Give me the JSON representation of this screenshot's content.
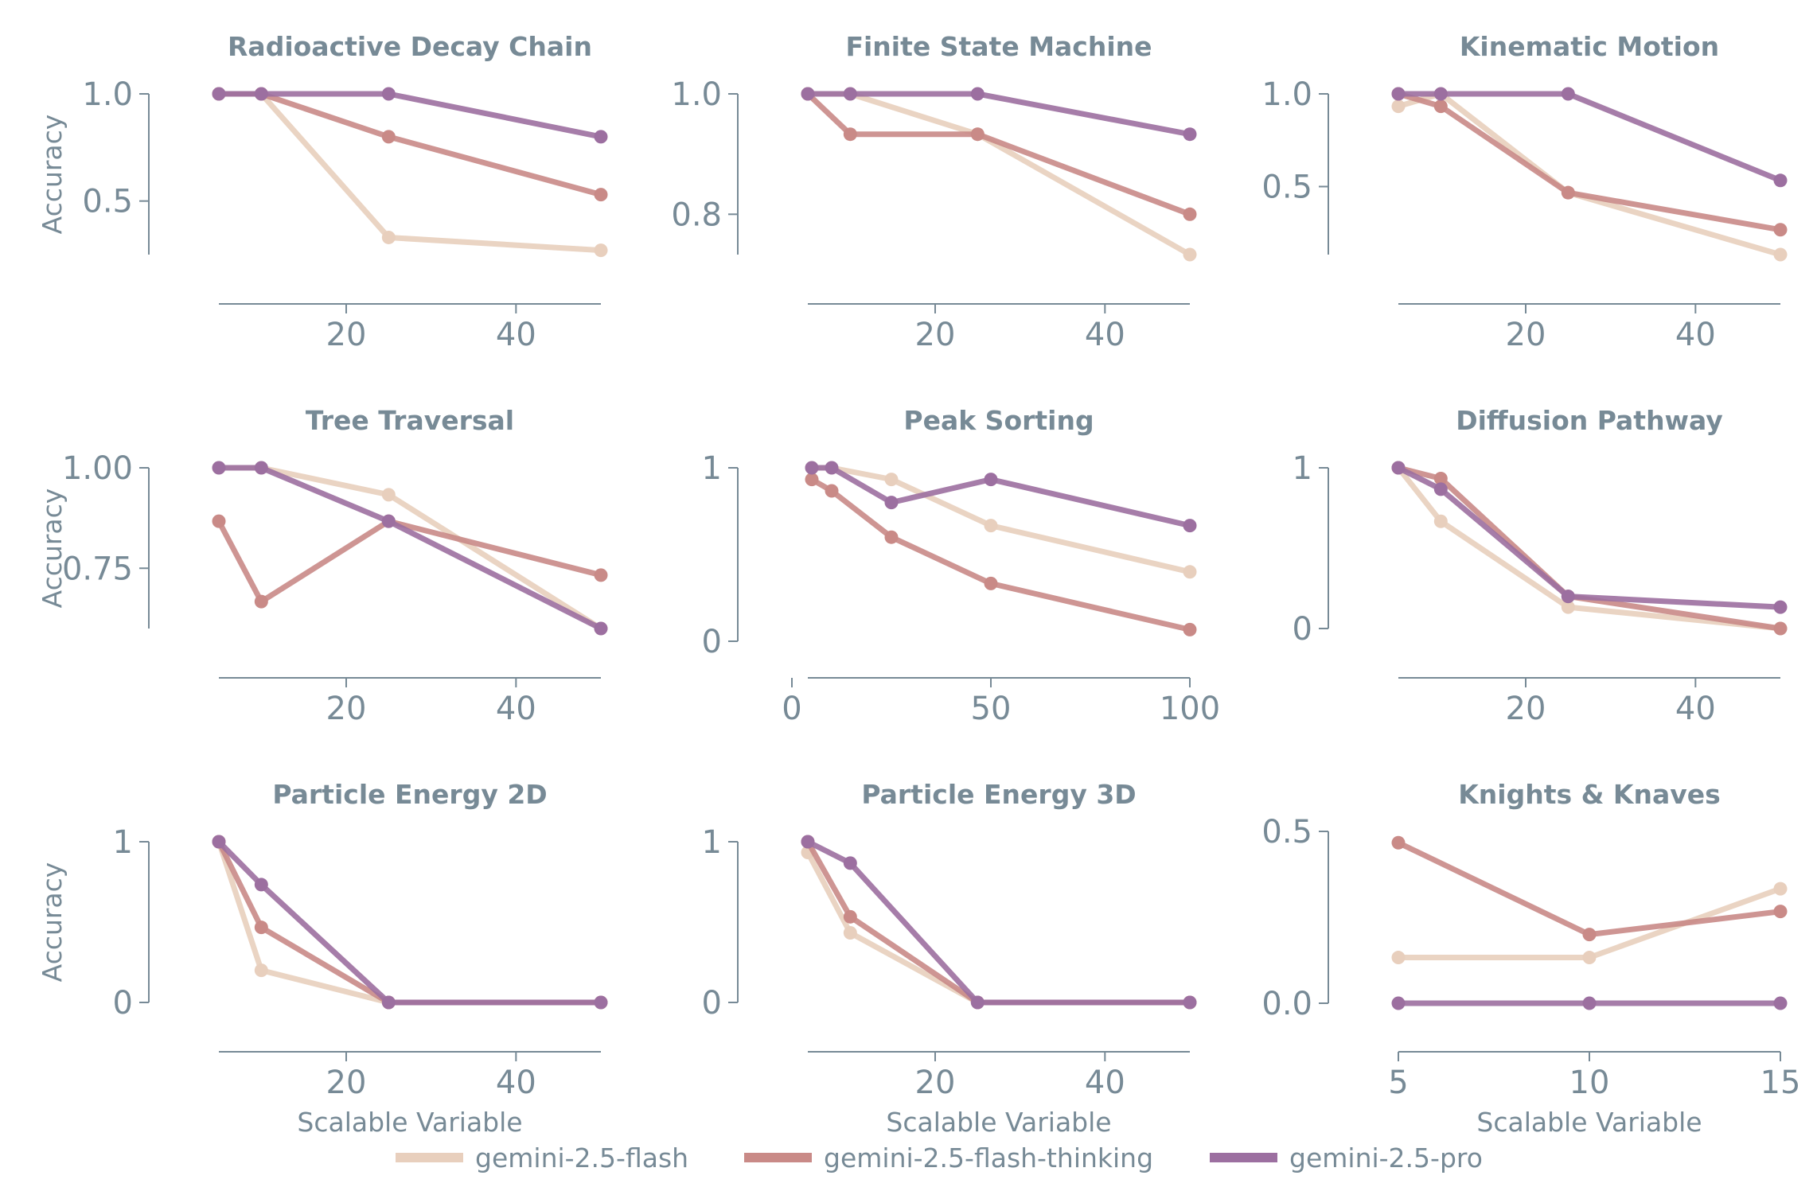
{
  "legend": {
    "placement": "bottom-center",
    "items": [
      {
        "name": "gemini-2.5-flash",
        "color": "#e8cfbd"
      },
      {
        "name": "gemini-2.5-flash-thinking",
        "color": "#c98a87"
      },
      {
        "name": "gemini-2.5-pro",
        "color": "#9c6fa0"
      }
    ]
  },
  "chart_data": [
    {
      "type": "line",
      "title": "Radioactive Decay Chain",
      "xlabel": "",
      "ylabel": "Accuracy",
      "x": [
        5,
        10,
        25,
        50
      ],
      "xticks": [
        20,
        40
      ],
      "yticks": [
        1.0,
        0.5
      ],
      "ytick_labels": [
        "1.0",
        "0.5"
      ],
      "ylim": [
        0.25,
        1.0
      ],
      "grid": false,
      "series": [
        {
          "name": "gemini-2.5-flash",
          "values": [
            1.0,
            1.0,
            0.33,
            0.27
          ]
        },
        {
          "name": "gemini-2.5-flash-thinking",
          "values": [
            1.0,
            1.0,
            0.8,
            0.53
          ]
        },
        {
          "name": "gemini-2.5-pro",
          "values": [
            1.0,
            1.0,
            1.0,
            0.8
          ]
        }
      ]
    },
    {
      "type": "line",
      "title": "Finite State Machine",
      "xlabel": "",
      "ylabel": "",
      "x": [
        5,
        10,
        25,
        50
      ],
      "xticks": [
        20,
        40
      ],
      "yticks": [
        1.0,
        0.8
      ],
      "ytick_labels": [
        "1.0",
        "0.8"
      ],
      "ylim": [
        0.733,
        1.0
      ],
      "grid": false,
      "series": [
        {
          "name": "gemini-2.5-flash",
          "values": [
            1.0,
            1.0,
            0.933,
            0.733
          ]
        },
        {
          "name": "gemini-2.5-flash-thinking",
          "values": [
            1.0,
            0.933,
            0.933,
            0.8
          ]
        },
        {
          "name": "gemini-2.5-pro",
          "values": [
            1.0,
            1.0,
            1.0,
            0.933
          ]
        }
      ]
    },
    {
      "type": "line",
      "title": "Kinematic Motion",
      "xlabel": "",
      "ylabel": "",
      "x": [
        5,
        10,
        25,
        50
      ],
      "xticks": [
        20,
        40
      ],
      "yticks": [
        1.0,
        0.5
      ],
      "ytick_labels": [
        "1.0",
        "0.5"
      ],
      "ylim": [
        0.133,
        1.0
      ],
      "grid": false,
      "series": [
        {
          "name": "gemini-2.5-flash",
          "values": [
            0.933,
            1.0,
            0.467,
            0.133
          ]
        },
        {
          "name": "gemini-2.5-flash-thinking",
          "values": [
            1.0,
            0.933,
            0.467,
            0.267
          ]
        },
        {
          "name": "gemini-2.5-pro",
          "values": [
            1.0,
            1.0,
            1.0,
            0.533
          ]
        }
      ]
    },
    {
      "type": "line",
      "title": "Tree Traversal",
      "xlabel": "",
      "ylabel": "Accuracy",
      "x": [
        5,
        10,
        25,
        50
      ],
      "xticks": [
        20,
        40
      ],
      "yticks": [
        1.0,
        0.75
      ],
      "ytick_labels": [
        "1.00",
        "0.75"
      ],
      "ylim": [
        0.6,
        1.0
      ],
      "grid": false,
      "series": [
        {
          "name": "gemini-2.5-flash",
          "values": [
            1.0,
            1.0,
            0.933,
            0.6
          ]
        },
        {
          "name": "gemini-2.5-flash-thinking",
          "values": [
            0.867,
            0.667,
            0.867,
            0.733
          ]
        },
        {
          "name": "gemini-2.5-pro",
          "values": [
            1.0,
            1.0,
            0.867,
            0.6
          ]
        }
      ]
    },
    {
      "type": "line",
      "title": "Peak Sorting",
      "xlabel": "",
      "ylabel": "",
      "x": [
        5,
        10,
        25,
        50,
        100
      ],
      "xticks": [
        0,
        50,
        100
      ],
      "yticks": [
        1,
        0
      ],
      "ytick_labels": [
        "1",
        "0"
      ],
      "ylim": [
        0.0,
        1.0
      ],
      "grid": false,
      "series": [
        {
          "name": "gemini-2.5-flash",
          "values": [
            1.0,
            1.0,
            0.933,
            0.667,
            0.4
          ]
        },
        {
          "name": "gemini-2.5-flash-thinking",
          "values": [
            0.933,
            0.867,
            0.6,
            0.333,
            0.067
          ]
        },
        {
          "name": "gemini-2.5-pro",
          "values": [
            1.0,
            1.0,
            0.8,
            0.933,
            0.667
          ]
        }
      ]
    },
    {
      "type": "line",
      "title": "Diffusion Pathway",
      "xlabel": "",
      "ylabel": "",
      "x": [
        5,
        10,
        25,
        50
      ],
      "xticks": [
        20,
        40
      ],
      "yticks": [
        1,
        0
      ],
      "ytick_labels": [
        "1",
        "0"
      ],
      "ylim": [
        0.0,
        1.0
      ],
      "grid": false,
      "series": [
        {
          "name": "gemini-2.5-flash",
          "values": [
            1.0,
            0.667,
            0.133,
            0.0
          ]
        },
        {
          "name": "gemini-2.5-flash-thinking",
          "values": [
            1.0,
            0.933,
            0.2,
            0.0
          ]
        },
        {
          "name": "gemini-2.5-pro",
          "values": [
            1.0,
            0.867,
            0.2,
            0.133
          ]
        }
      ]
    },
    {
      "type": "line",
      "title": "Particle Energy 2D",
      "xlabel": "Scalable Variable",
      "ylabel": "Accuracy",
      "x": [
        5,
        10,
        25,
        50
      ],
      "xticks": [
        20,
        40
      ],
      "yticks": [
        1,
        0
      ],
      "ytick_labels": [
        "1",
        "0"
      ],
      "ylim": [
        0.0,
        1.0
      ],
      "grid": false,
      "series": [
        {
          "name": "gemini-2.5-flash",
          "values": [
            1.0,
            0.2,
            0.0,
            0.0
          ]
        },
        {
          "name": "gemini-2.5-flash-thinking",
          "values": [
            1.0,
            0.467,
            0.0,
            0.0
          ]
        },
        {
          "name": "gemini-2.5-pro",
          "values": [
            1.0,
            0.733,
            0.0,
            0.0
          ]
        }
      ]
    },
    {
      "type": "line",
      "title": "Particle Energy 3D",
      "xlabel": "Scalable Variable",
      "ylabel": "",
      "x": [
        5,
        10,
        25,
        50
      ],
      "xticks": [
        20,
        40
      ],
      "yticks": [
        1,
        0
      ],
      "ytick_labels": [
        "1",
        "0"
      ],
      "ylim": [
        0.0,
        1.0
      ],
      "grid": false,
      "series": [
        {
          "name": "gemini-2.5-flash",
          "values": [
            0.933,
            0.433,
            0.0,
            0.0
          ]
        },
        {
          "name": "gemini-2.5-flash-thinking",
          "values": [
            1.0,
            0.533,
            0.0,
            0.0
          ]
        },
        {
          "name": "gemini-2.5-pro",
          "values": [
            1.0,
            0.867,
            0.0,
            0.0
          ]
        }
      ]
    },
    {
      "type": "line",
      "title": "Knights & Knaves",
      "xlabel": "Scalable Variable",
      "ylabel": "",
      "x": [
        5,
        10,
        15
      ],
      "xticks": [
        5,
        10,
        15
      ],
      "yticks": [
        0.5,
        0.0
      ],
      "ytick_labels": [
        "0.5",
        "0.0"
      ],
      "ylim": [
        0.0,
        0.5
      ],
      "grid": false,
      "series": [
        {
          "name": "gemini-2.5-flash",
          "values": [
            0.133,
            0.133,
            0.333
          ]
        },
        {
          "name": "gemini-2.5-flash-thinking",
          "values": [
            0.467,
            0.2,
            0.267
          ]
        },
        {
          "name": "gemini-2.5-pro",
          "values": [
            0.0,
            0.0,
            0.0
          ]
        }
      ]
    }
  ]
}
